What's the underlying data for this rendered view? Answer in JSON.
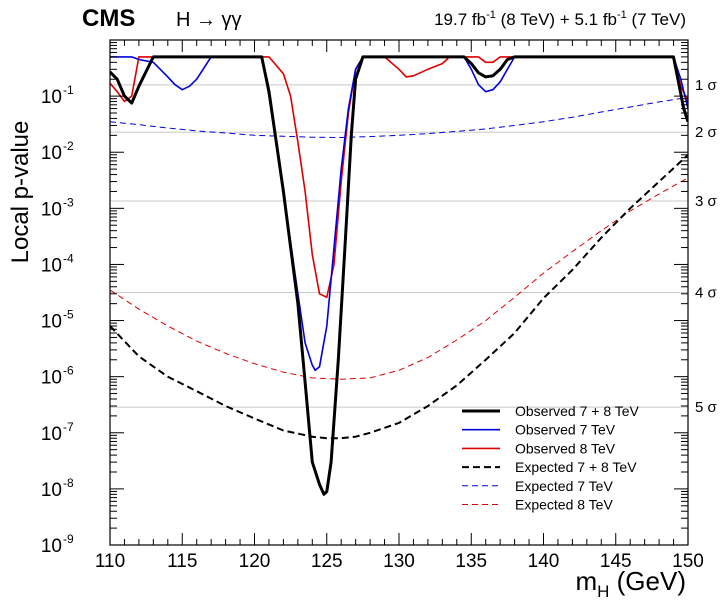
{
  "chart_data": {
    "type": "line",
    "experiment_label": "CMS",
    "channel_label": "H → γγ",
    "lumi_label": {
      "run1_value": "19.7 fb",
      "run1_exp": "-1",
      "run1_energy": " (8 TeV) + 5.1 fb",
      "run2_exp": "-1",
      "run2_energy": " (7 TeV)"
    },
    "xlabel": {
      "main": "m",
      "sub": "H",
      "unit": " (GeV)"
    },
    "ylabel": "Local p-value",
    "x_range": [
      110,
      150
    ],
    "y_scale": "log",
    "y_range": [
      1e-09,
      1
    ],
    "x_ticks": [
      110,
      115,
      120,
      125,
      130,
      135,
      140,
      145,
      150
    ],
    "y_ticks": [
      {
        "exp": -9,
        "label": "10",
        "sup": "-9"
      },
      {
        "exp": -8,
        "label": "10",
        "sup": "-8"
      },
      {
        "exp": -7,
        "label": "10",
        "sup": "-7"
      },
      {
        "exp": -6,
        "label": "10",
        "sup": "-6"
      },
      {
        "exp": -5,
        "label": "10",
        "sup": "-5"
      },
      {
        "exp": -4,
        "label": "10",
        "sup": "-4"
      },
      {
        "exp": -3,
        "label": "10",
        "sup": "-3"
      },
      {
        "exp": -2,
        "label": "10",
        "sup": "-2"
      },
      {
        "exp": -1,
        "label": "10",
        "sup": "-1"
      }
    ],
    "sigma_lines": [
      {
        "label": "1 σ",
        "p": 0.1587
      },
      {
        "label": "2 σ",
        "p": 0.02275
      },
      {
        "label": "3 σ",
        "p": 0.00135
      },
      {
        "label": "4 σ",
        "p": 3.17e-05
      },
      {
        "label": "5 σ",
        "p": 2.87e-07
      }
    ],
    "legend_position": "bottom-right",
    "series": [
      {
        "name": "Observed 7 + 8 TeV",
        "color": "#000000",
        "style": "solid",
        "width": 3,
        "x": [
          110,
          110.5,
          111,
          111.5,
          112,
          113,
          114,
          116,
          118,
          119,
          120,
          120.5,
          121,
          122,
          123,
          123.5,
          124,
          124.5,
          124.8,
          125,
          125.3,
          125.8,
          126.3,
          126.7,
          127,
          127.5,
          128,
          130,
          132,
          134,
          134.5,
          135,
          135.5,
          136,
          136.5,
          137,
          137.5,
          138,
          140,
          142,
          144,
          146,
          148,
          149,
          149.3,
          149.7,
          150
        ],
        "y": [
          0.27,
          0.2,
          0.1,
          0.075,
          0.15,
          0.5,
          0.5,
          0.5,
          0.5,
          0.5,
          0.5,
          0.5,
          0.12,
          0.002,
          2e-05,
          8e-07,
          3e-08,
          1.2e-08,
          8e-09,
          9e-09,
          3e-08,
          2e-06,
          0.0003,
          0.02,
          0.2,
          0.5,
          0.5,
          0.5,
          0.5,
          0.5,
          0.5,
          0.38,
          0.26,
          0.22,
          0.23,
          0.3,
          0.45,
          0.5,
          0.5,
          0.5,
          0.5,
          0.5,
          0.5,
          0.5,
          0.2,
          0.06,
          0.035
        ]
      },
      {
        "name": "Observed 7 TeV",
        "color": "#0000dd",
        "style": "solid",
        "width": 1.6,
        "x": [
          110,
          111.5,
          112,
          113,
          114,
          114.5,
          115,
          115.5,
          116,
          117,
          118,
          120,
          120.5,
          121,
          122,
          123,
          123.5,
          124,
          124.2,
          124.5,
          125,
          125.5,
          126,
          126.5,
          127,
          127.5,
          128,
          130,
          133,
          134.5,
          135,
          135.5,
          136,
          136.5,
          137,
          138,
          140,
          145,
          148,
          149,
          149.5,
          150
        ],
        "y": [
          0.5,
          0.5,
          0.45,
          0.4,
          0.22,
          0.16,
          0.13,
          0.15,
          0.2,
          0.5,
          0.5,
          0.5,
          0.5,
          0.1,
          0.002,
          3e-05,
          4e-06,
          1.6e-06,
          1.3e-06,
          1.5e-06,
          8e-06,
          0.0002,
          0.005,
          0.06,
          0.3,
          0.5,
          0.5,
          0.5,
          0.5,
          0.5,
          0.3,
          0.16,
          0.12,
          0.13,
          0.18,
          0.5,
          0.5,
          0.5,
          0.5,
          0.5,
          0.2,
          0.06
        ]
      },
      {
        "name": "Observed 8 TeV",
        "color": "#dd0000",
        "style": "solid",
        "width": 1.6,
        "x": [
          110,
          110.5,
          111,
          111.5,
          112,
          113,
          115,
          118,
          120,
          121,
          122,
          122.5,
          123,
          123.5,
          124,
          124.5,
          125,
          125.5,
          126,
          126.5,
          127,
          127.5,
          128,
          129,
          130,
          130.5,
          131,
          132,
          133,
          133.5,
          134,
          135,
          135.5,
          136,
          136.5,
          137,
          138,
          140,
          145,
          148,
          149,
          149.5,
          150
        ],
        "y": [
          0.17,
          0.12,
          0.08,
          0.1,
          0.5,
          0.5,
          0.5,
          0.5,
          0.5,
          0.5,
          0.25,
          0.1,
          0.015,
          0.002,
          0.00015,
          3e-05,
          2.6e-05,
          0.0001,
          0.003,
          0.05,
          0.3,
          0.5,
          0.5,
          0.5,
          0.3,
          0.22,
          0.23,
          0.3,
          0.38,
          0.5,
          0.5,
          0.5,
          0.5,
          0.4,
          0.4,
          0.5,
          0.5,
          0.5,
          0.5,
          0.5,
          0.5,
          0.15,
          0.08
        ]
      },
      {
        "name": "Expected 7 + 8 TeV",
        "color": "#000000",
        "style": "dashed",
        "width": 2,
        "x": [
          110,
          112,
          114,
          116,
          118,
          120,
          122,
          124,
          125,
          126,
          127,
          128,
          130,
          132,
          134,
          136,
          138,
          140,
          142,
          144,
          146,
          148,
          150
        ],
        "y": [
          8e-06,
          2.3e-06,
          1e-06,
          5.5e-07,
          3e-07,
          1.8e-07,
          1.1e-07,
          8.5e-08,
          8e-08,
          8e-08,
          8.5e-08,
          1e-07,
          1.5e-07,
          3e-07,
          7e-07,
          2e-06,
          6e-06,
          2.5e-05,
          8e-05,
          0.0003,
          0.001,
          0.003,
          0.009
        ]
      },
      {
        "name": "Expected 7 TeV",
        "color": "#0000dd",
        "style": "dashed",
        "width": 1,
        "x": [
          110,
          112,
          114,
          116,
          118,
          120,
          122,
          124,
          126,
          128,
          130,
          132,
          134,
          136,
          138,
          140,
          142,
          144,
          146,
          148,
          150
        ],
        "y": [
          0.035,
          0.031,
          0.027,
          0.024,
          0.022,
          0.02,
          0.0192,
          0.0185,
          0.0183,
          0.019,
          0.02,
          0.0215,
          0.0235,
          0.026,
          0.03,
          0.035,
          0.042,
          0.052,
          0.064,
          0.079,
          0.095
        ]
      },
      {
        "name": "Expected 8 TeV",
        "color": "#dd0000",
        "style": "dashed",
        "width": 1,
        "x": [
          110,
          112,
          114,
          116,
          118,
          120,
          122,
          124,
          126,
          128,
          130,
          132,
          134,
          136,
          138,
          140,
          142,
          144,
          146,
          148,
          150
        ],
        "y": [
          3.5e-05,
          1.6e-05,
          8e-06,
          4.3e-06,
          2.6e-06,
          1.7e-06,
          1.2e-06,
          9.5e-07,
          9e-07,
          9.5e-07,
          1.3e-06,
          2.2e-06,
          4.5e-06,
          1e-05,
          2.6e-05,
          7e-05,
          0.00017,
          0.0004,
          0.0009,
          0.0018,
          0.0035
        ]
      }
    ]
  }
}
